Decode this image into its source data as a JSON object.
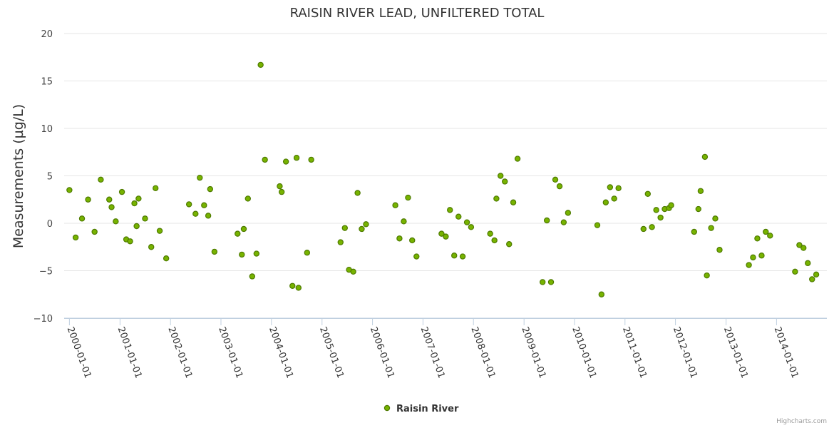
{
  "chart_data": {
    "type": "scatter",
    "title": "RAISIN RIVER LEAD, UNFILTERED TOTAL",
    "ylabel": "Measurements (µg/L)",
    "xlabel": "",
    "ylim": [
      -10,
      20
    ],
    "yticks": [
      -10,
      -5,
      0,
      5,
      10,
      15,
      20
    ],
    "xlim": [
      "1999-11-24",
      "2014-12-31"
    ],
    "xticks": [
      "2000-01-01",
      "2001-01-01",
      "2002-01-01",
      "2003-01-01",
      "2004-01-01",
      "2005-01-01",
      "2006-01-01",
      "2007-01-01",
      "2008-01-01",
      "2009-01-01",
      "2010-01-01",
      "2011-01-01",
      "2012-01-01",
      "2013-01-01",
      "2014-01-01"
    ],
    "grid": true,
    "legend_position": "bottom-center",
    "series": [
      {
        "name": "Raisin River",
        "color": "#77b300",
        "stroke": "#4e7a00",
        "points": [
          [
            "2000-01-01",
            3.5
          ],
          [
            "2000-02-15",
            -1.5
          ],
          [
            "2000-04-01",
            0.5
          ],
          [
            "2000-05-15",
            2.5
          ],
          [
            "2000-07-01",
            -0.9
          ],
          [
            "2000-08-15",
            4.6
          ],
          [
            "2000-10-15",
            2.5
          ],
          [
            "2000-11-01",
            1.7
          ],
          [
            "2000-12-01",
            0.2
          ],
          [
            "2001-01-15",
            3.3
          ],
          [
            "2001-02-15",
            -1.7
          ],
          [
            "2001-03-15",
            -1.9
          ],
          [
            "2001-04-15",
            2.1
          ],
          [
            "2001-05-01",
            -0.3
          ],
          [
            "2001-05-15",
            2.6
          ],
          [
            "2001-07-01",
            0.5
          ],
          [
            "2001-08-15",
            -2.5
          ],
          [
            "2001-09-15",
            3.7
          ],
          [
            "2001-10-15",
            -0.8
          ],
          [
            "2001-12-01",
            -3.7
          ],
          [
            "2002-05-15",
            2.0
          ],
          [
            "2002-07-01",
            1.0
          ],
          [
            "2002-08-01",
            4.8
          ],
          [
            "2002-09-01",
            1.9
          ],
          [
            "2002-10-01",
            0.8
          ],
          [
            "2002-10-15",
            3.6
          ],
          [
            "2002-11-15",
            -3.0
          ],
          [
            "2003-05-01",
            -1.1
          ],
          [
            "2003-06-01",
            -3.3
          ],
          [
            "2003-06-15",
            -0.6
          ],
          [
            "2003-07-15",
            2.6
          ],
          [
            "2003-08-15",
            -5.6
          ],
          [
            "2003-09-15",
            -3.2
          ],
          [
            "2003-10-15",
            16.7
          ],
          [
            "2003-11-15",
            6.7
          ],
          [
            "2004-03-01",
            3.9
          ],
          [
            "2004-03-15",
            3.3
          ],
          [
            "2004-04-15",
            6.5
          ],
          [
            "2004-06-01",
            -6.6
          ],
          [
            "2004-07-01",
            6.9
          ],
          [
            "2004-07-15",
            -6.8
          ],
          [
            "2004-09-15",
            -3.1
          ],
          [
            "2004-10-15",
            6.7
          ],
          [
            "2005-05-15",
            -2.0
          ],
          [
            "2005-06-15",
            -0.5
          ],
          [
            "2005-07-15",
            -4.9
          ],
          [
            "2005-08-15",
            -5.1
          ],
          [
            "2005-09-15",
            3.2
          ],
          [
            "2005-10-15",
            -0.6
          ],
          [
            "2005-11-15",
            -0.1
          ],
          [
            "2006-06-15",
            1.9
          ],
          [
            "2006-07-15",
            -1.6
          ],
          [
            "2006-08-15",
            0.2
          ],
          [
            "2006-09-15",
            2.7
          ],
          [
            "2006-10-15",
            -1.8
          ],
          [
            "2006-11-15",
            -3.5
          ],
          [
            "2007-05-15",
            -1.1
          ],
          [
            "2007-06-15",
            -1.4
          ],
          [
            "2007-07-15",
            1.4
          ],
          [
            "2007-08-15",
            -3.4
          ],
          [
            "2007-09-15",
            0.7
          ],
          [
            "2007-10-15",
            -3.5
          ],
          [
            "2007-11-15",
            0.1
          ],
          [
            "2007-12-15",
            -0.4
          ],
          [
            "2008-05-01",
            -1.1
          ],
          [
            "2008-06-01",
            -1.8
          ],
          [
            "2008-06-15",
            2.6
          ],
          [
            "2008-07-15",
            5.0
          ],
          [
            "2008-08-15",
            4.4
          ],
          [
            "2008-09-15",
            -2.2
          ],
          [
            "2008-10-15",
            2.2
          ],
          [
            "2008-11-15",
            6.8
          ],
          [
            "2009-05-15",
            -6.2
          ],
          [
            "2009-06-15",
            0.3
          ],
          [
            "2009-07-15",
            -6.2
          ],
          [
            "2009-08-15",
            4.6
          ],
          [
            "2009-09-15",
            3.9
          ],
          [
            "2009-10-15",
            0.1
          ],
          [
            "2009-11-15",
            1.1
          ],
          [
            "2010-06-15",
            -0.2
          ],
          [
            "2010-07-15",
            -7.5
          ],
          [
            "2010-08-15",
            2.2
          ],
          [
            "2010-09-15",
            3.8
          ],
          [
            "2010-10-15",
            2.6
          ],
          [
            "2010-11-15",
            3.7
          ],
          [
            "2011-05-15",
            -0.6
          ],
          [
            "2011-06-15",
            3.1
          ],
          [
            "2011-07-15",
            -0.4
          ],
          [
            "2011-08-15",
            1.4
          ],
          [
            "2011-09-15",
            0.6
          ],
          [
            "2011-10-15",
            1.5
          ],
          [
            "2011-11-15",
            1.6
          ],
          [
            "2011-12-01",
            1.9
          ],
          [
            "2012-05-15",
            -0.9
          ],
          [
            "2012-06-15",
            1.5
          ],
          [
            "2012-07-01",
            3.4
          ],
          [
            "2012-08-01",
            7.0
          ],
          [
            "2012-08-15",
            -5.5
          ],
          [
            "2012-09-15",
            -0.5
          ],
          [
            "2012-10-15",
            0.5
          ],
          [
            "2012-11-15",
            -2.8
          ],
          [
            "2013-06-15",
            -4.4
          ],
          [
            "2013-07-15",
            -3.6
          ],
          [
            "2013-08-15",
            -1.6
          ],
          [
            "2013-09-15",
            -3.4
          ],
          [
            "2013-10-15",
            -0.9
          ],
          [
            "2013-11-15",
            -1.3
          ],
          [
            "2014-05-15",
            -5.1
          ],
          [
            "2014-06-15",
            -2.3
          ],
          [
            "2014-07-15",
            -2.6
          ],
          [
            "2014-08-15",
            -4.2
          ],
          [
            "2014-09-15",
            -5.9
          ],
          [
            "2014-10-15",
            -5.4
          ]
        ]
      }
    ]
  },
  "credits": "Highcharts.com"
}
